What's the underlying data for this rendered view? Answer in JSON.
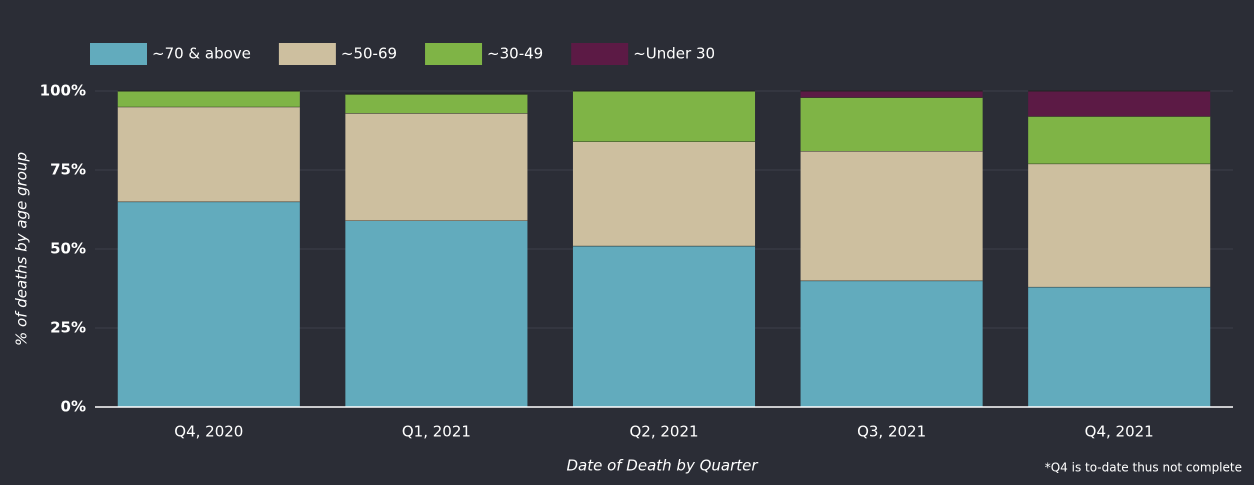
{
  "chart_data": {
    "type": "stacked_bar",
    "categories": [
      "Q4, 2020",
      "Q1, 2021",
      "Q2, 2021",
      "Q3, 2021",
      "Q4, 2021"
    ],
    "series": [
      {
        "name": "~70 & above",
        "color": "#62abbd",
        "values": [
          65,
          59,
          51,
          40,
          38
        ]
      },
      {
        "name": "~50-69",
        "color": "#cdbf9f",
        "values": [
          30,
          34,
          33,
          41,
          39
        ]
      },
      {
        "name": "~30-49",
        "color": "#7fb446",
        "values": [
          5,
          6,
          16,
          17,
          15
        ]
      },
      {
        "name": "~Under 30",
        "color": "#5c1a45",
        "values": [
          0,
          0,
          0,
          2,
          8
        ]
      }
    ],
    "ylim": [
      0,
      100
    ],
    "yticks": [
      {
        "value": 0,
        "label": "0%"
      },
      {
        "value": 25,
        "label": "25%"
      },
      {
        "value": 50,
        "label": "50%"
      },
      {
        "value": 75,
        "label": "75%"
      },
      {
        "value": 100,
        "label": "100%"
      }
    ],
    "ylabel": "% of deaths by age group",
    "xlabel": "Date of Death by Quarter",
    "note": "*Q4 is to-date thus not complete",
    "grid": true,
    "legend": "top-left"
  }
}
